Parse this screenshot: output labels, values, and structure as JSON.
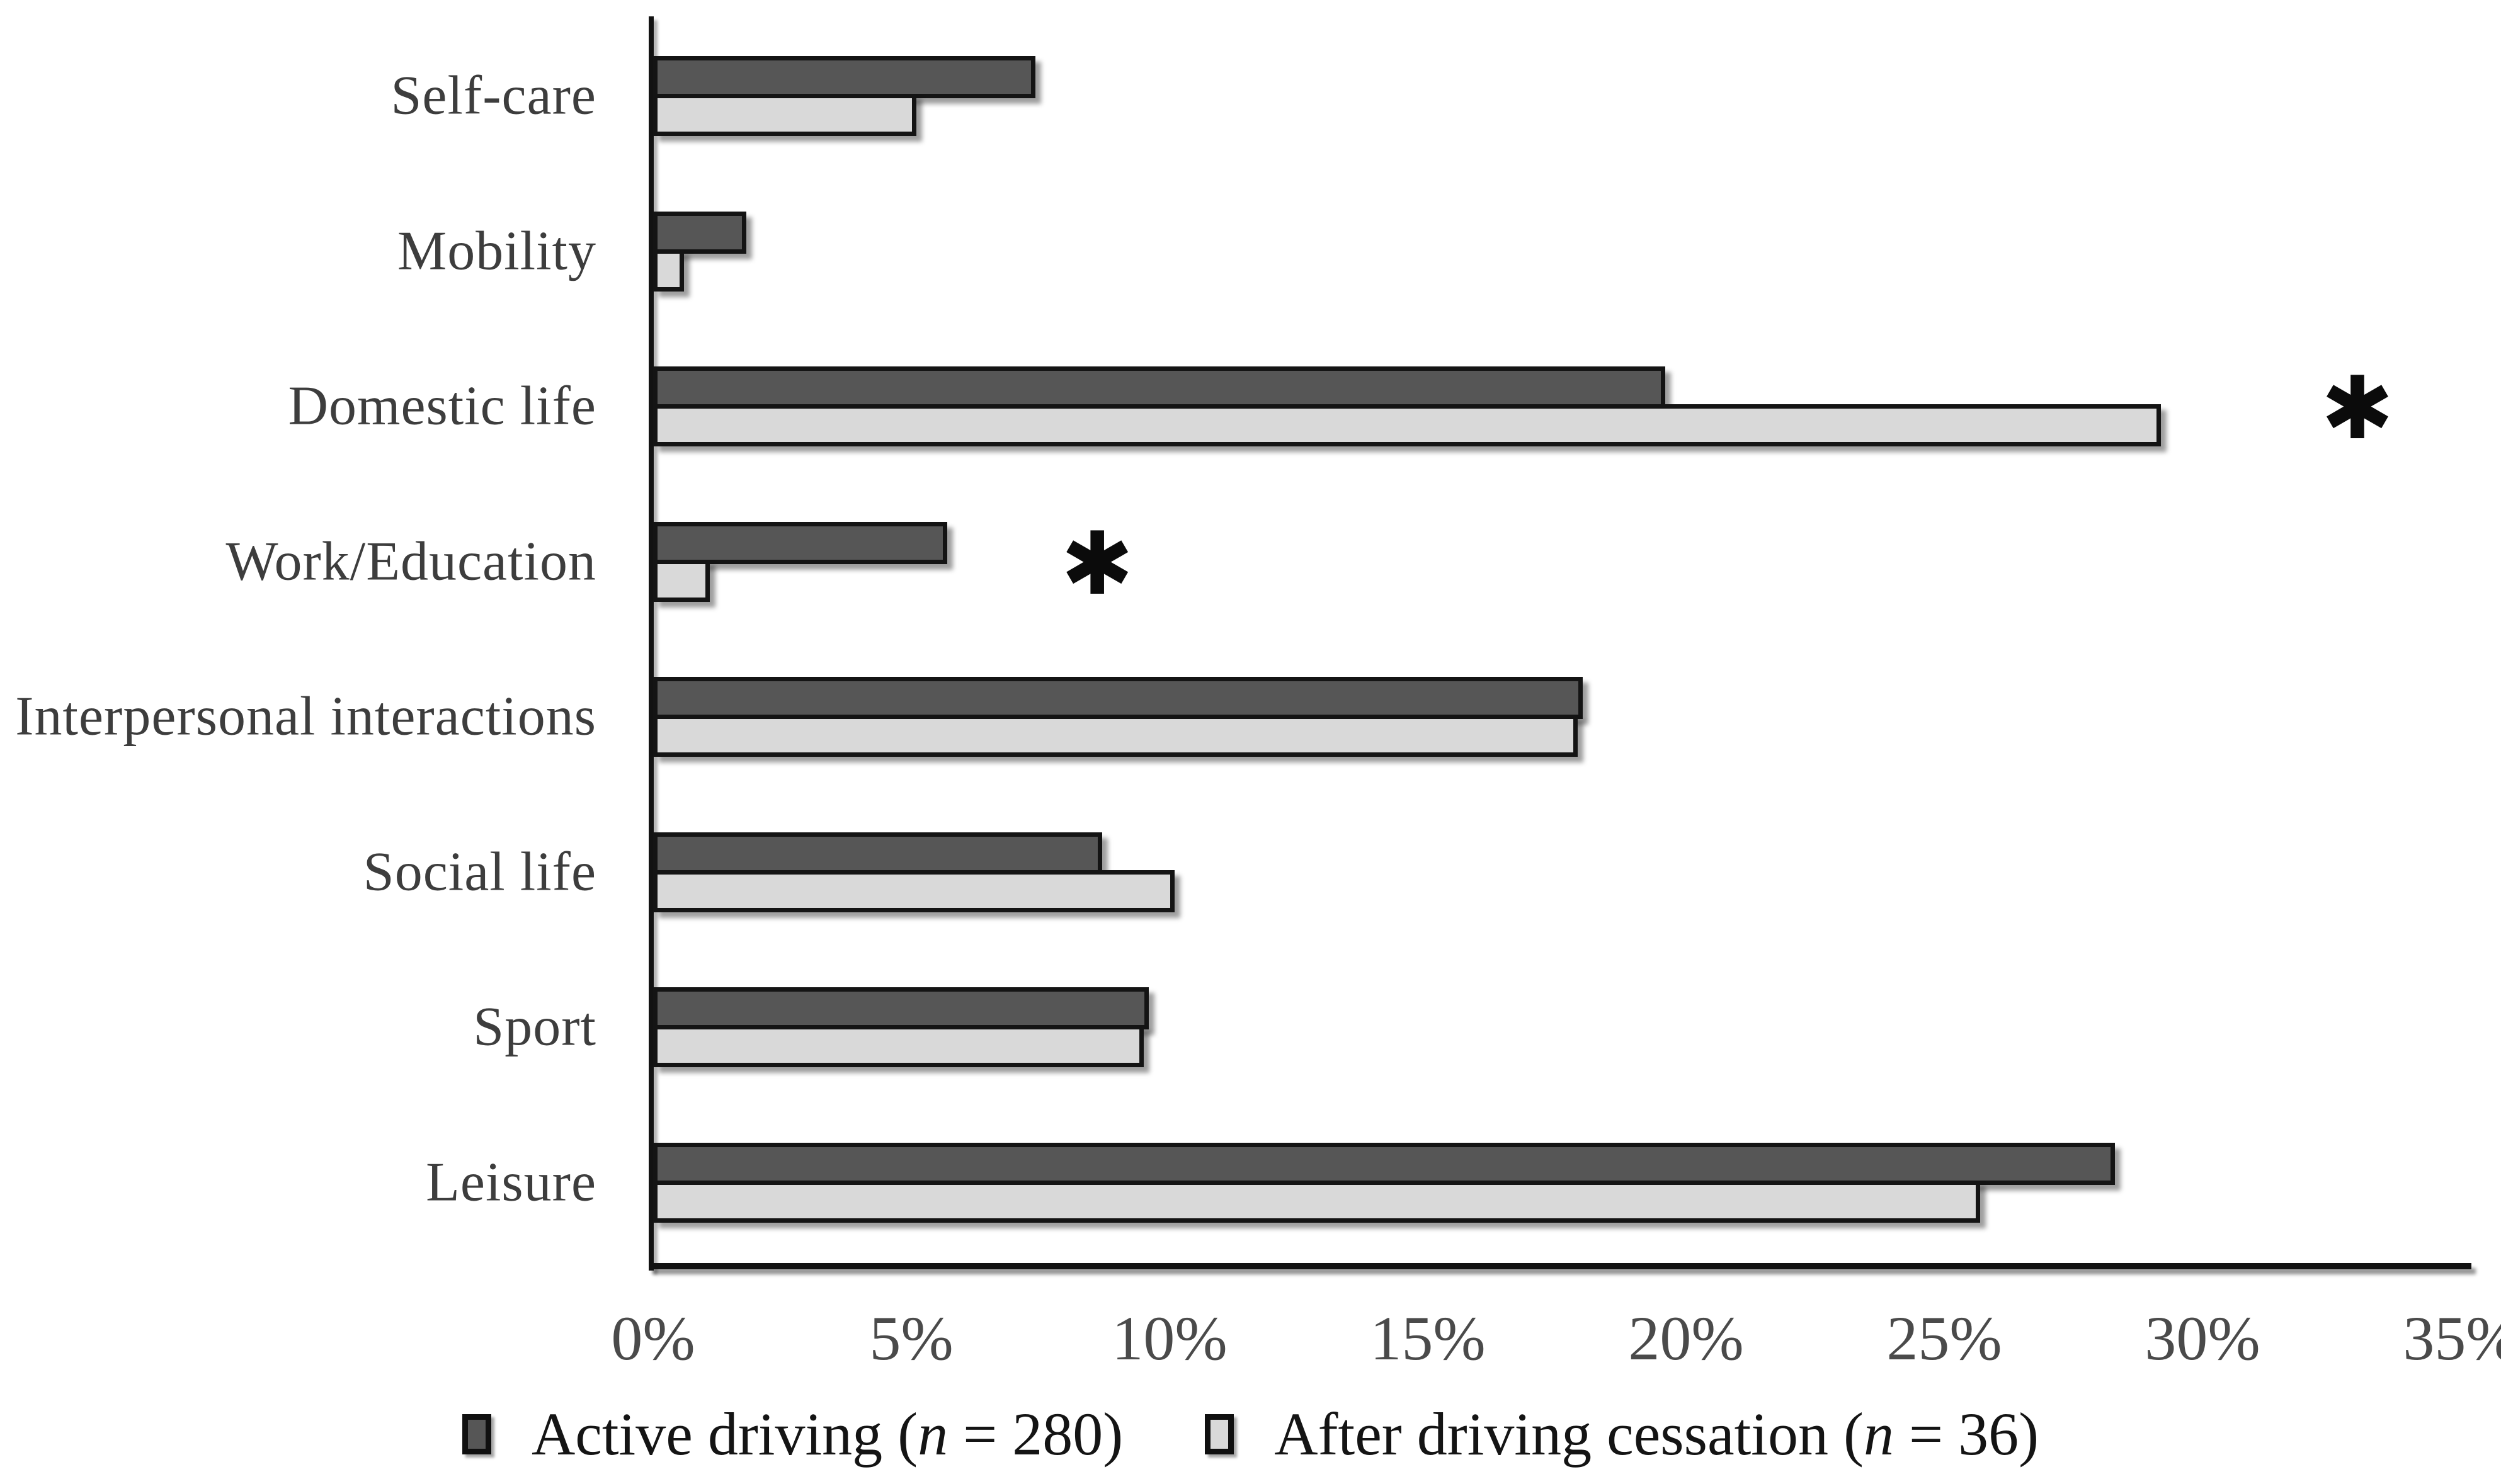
{
  "chart_data": {
    "type": "bar",
    "orientation": "horizontal",
    "title": "",
    "xlabel": "",
    "ylabel": "",
    "xlim": [
      0,
      35
    ],
    "x_ticks": [
      "0%",
      "5%",
      "10%",
      "15%",
      "20%",
      "25%",
      "30%",
      "35%"
    ],
    "grid": false,
    "legend_position": "bottom",
    "categories": [
      "Self-care",
      "Mobility",
      "Domestic life",
      "Work/Education",
      "Interpersonal interactions",
      "Social life",
      "Sport",
      "Leisure"
    ],
    "series": [
      {
        "name": "Active driving (n = 280)",
        "color": "#565656",
        "values": [
          7.4,
          1.8,
          19.6,
          5.7,
          18.0,
          8.7,
          9.6,
          28.3
        ]
      },
      {
        "name": "After driving cessation (n = 36)",
        "color": "#d9d9d9",
        "values": [
          5.1,
          0.6,
          29.2,
          1.1,
          17.9,
          10.1,
          9.5,
          25.7
        ]
      }
    ],
    "annotations": [
      {
        "symbol": "✱",
        "category": "Domestic life",
        "x_percent": 33.0
      },
      {
        "symbol": "✱",
        "category": "Work/Education",
        "x_percent": 8.6
      }
    ]
  },
  "legend": {
    "items": [
      {
        "prefix": "Active driving (",
        "var": "n",
        "suffix": " = 280)",
        "color": "#565656"
      },
      {
        "prefix": "After driving cessation (",
        "var": "n",
        "suffix": " = 36)",
        "color": "#d9d9d9"
      }
    ]
  },
  "colors": {
    "bar_active": "#565656",
    "bar_cessation": "#d9d9d9",
    "bar_border": "#141414",
    "axis": "#121212",
    "category_label": "#3d3d3d",
    "tick_label": "#4a4a4a",
    "legend_text": "#141414",
    "background": "#ffffff"
  }
}
